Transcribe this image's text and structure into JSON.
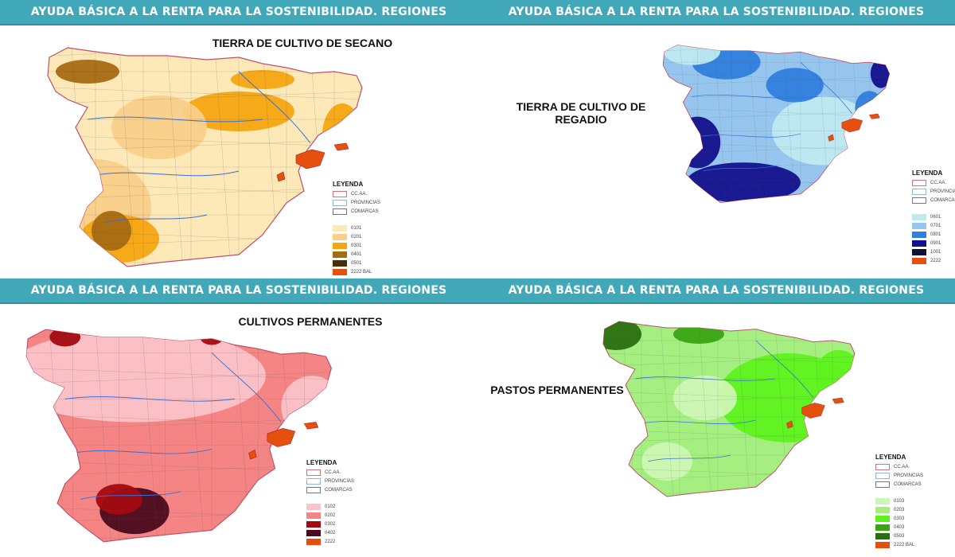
{
  "panels": [
    {
      "header": "AYUDA BÁSICA A LA RENTA PARA LA SOSTENIBILIDAD. REGIONES",
      "title": "TIERRA DE CULTIVO DE SECANO",
      "legend": {
        "title": "LEYENDA",
        "boundaries": [
          {
            "label": "CC.AA.",
            "color": "#d9707f"
          },
          {
            "label": "PROVINCIAS",
            "color": "#8fb8df"
          },
          {
            "label": "COMARCAS",
            "color": "#777777"
          }
        ],
        "regions": [
          {
            "label": "0101",
            "color": "#fde9b8"
          },
          {
            "label": "0201",
            "color": "#f9d08a"
          },
          {
            "label": "0301",
            "color": "#f5a510"
          },
          {
            "label": "0401",
            "color": "#a66a12"
          },
          {
            "label": "0501",
            "color": "#4a2c08"
          },
          {
            "label": "2222 BAL",
            "color": "#e5500f"
          }
        ]
      }
    },
    {
      "header": "AYUDA BÁSICA A LA RENTA PARA LA SOSTENIBILIDAD. REGIONES",
      "title": "TIERRA DE CULTIVO DE REGADIO",
      "legend": {
        "title": "LEYENDA",
        "boundaries": [
          {
            "label": "CC.AA.",
            "color": "#d9707f"
          },
          {
            "label": "PROVINCIAS",
            "color": "#8fb8df"
          },
          {
            "label": "COMARCAS",
            "color": "#777777"
          }
        ],
        "regions": [
          {
            "label": "0601",
            "color": "#bfeaf0"
          },
          {
            "label": "0701",
            "color": "#96c6ee"
          },
          {
            "label": "0801",
            "color": "#2f7fdc"
          },
          {
            "label": "0901",
            "color": "#12108c"
          },
          {
            "label": "1001",
            "color": "#0b1233"
          },
          {
            "label": "2222",
            "color": "#e5500f"
          }
        ]
      }
    },
    {
      "header": "AYUDA BÁSICA A LA RENTA PARA LA SOSTENIBILIDAD. REGIONES",
      "title": "CULTIVOS PERMANENTES",
      "legend": {
        "title": "LEYENDA",
        "boundaries": [
          {
            "label": "CC.AA.",
            "color": "#d9707f"
          },
          {
            "label": "PROVINCIAS",
            "color": "#8fb8df"
          },
          {
            "label": "COMARCAS",
            "color": "#777777"
          }
        ],
        "regions": [
          {
            "label": "0102",
            "color": "#fbc3c8"
          },
          {
            "label": "0202",
            "color": "#f58585"
          },
          {
            "label": "0302",
            "color": "#a30a10"
          },
          {
            "label": "0402",
            "color": "#4a0a1c"
          },
          {
            "label": "2222",
            "color": "#e5500f"
          }
        ]
      }
    },
    {
      "header": "AYUDA BÁSICA A LA RENTA PARA LA SOSTENIBILIDAD. REGIONES",
      "title": "PASTOS PERMANENTES",
      "legend": {
        "title": "LEYENDA",
        "boundaries": [
          {
            "label": "CC.AA.",
            "color": "#d9707f"
          },
          {
            "label": "PROVINCIAS",
            "color": "#8fb8df"
          },
          {
            "label": "COMARCAS",
            "color": "#777777"
          }
        ],
        "regions": [
          {
            "label": "0103",
            "color": "#cdf7b4"
          },
          {
            "label": "0203",
            "color": "#a4ef80"
          },
          {
            "label": "0303",
            "color": "#5ef21c"
          },
          {
            "label": "0403",
            "color": "#3aa414"
          },
          {
            "label": "0503",
            "color": "#2a6e10"
          },
          {
            "label": "2222 BAL",
            "color": "#e5500f"
          }
        ]
      }
    }
  ]
}
